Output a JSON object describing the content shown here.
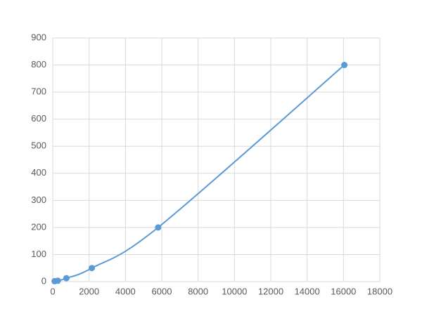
{
  "chart_data": {
    "type": "scatter_line",
    "x": [
      100,
      280,
      750,
      2150,
      5800,
      16050
    ],
    "series": [
      {
        "color": "#5b9bd5",
        "values": [
          1.6,
          3.1,
          12.5,
          50,
          200,
          800
        ]
      }
    ],
    "xlim": [
      0,
      18000
    ],
    "xticks": [
      0,
      2000,
      4000,
      6000,
      8000,
      10000,
      12000,
      14000,
      16000,
      18000
    ],
    "ylim": [
      0,
      900
    ],
    "yticks": [
      0,
      100,
      200,
      300,
      400,
      500,
      600,
      700,
      800,
      900
    ],
    "grid": true,
    "smooth": true
  }
}
